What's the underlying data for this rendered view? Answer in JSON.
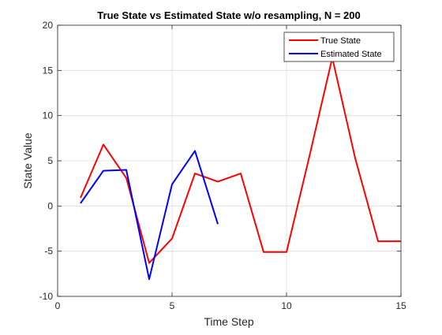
{
  "chart_data": {
    "type": "line",
    "title": "True State vs Estimated State w/o resampling, N = 200",
    "xlabel": "Time Step",
    "ylabel": "State Value",
    "xlim": [
      0,
      15
    ],
    "ylim": [
      -10,
      20
    ],
    "xticks": [
      0,
      5,
      10,
      15
    ],
    "yticks": [
      -10,
      -5,
      0,
      5,
      10,
      15,
      20
    ],
    "grid": true,
    "legend_position": "top-right",
    "series": [
      {
        "name": "True State",
        "color": "#ff0000",
        "x": [
          1,
          2,
          3,
          4,
          5,
          6,
          7,
          8,
          9,
          10,
          11,
          12,
          13,
          14,
          15
        ],
        "y": [
          0.9,
          6.8,
          3.1,
          -6.3,
          -3.6,
          3.6,
          2.7,
          3.6,
          -5.1,
          -5.1,
          5.5,
          16.4,
          5.3,
          -3.9,
          -3.9
        ]
      },
      {
        "name": "Estimated State",
        "color": "#0000ff",
        "x": [
          1,
          2,
          3,
          4,
          5,
          6,
          7
        ],
        "y": [
          0.3,
          3.9,
          4.0,
          -8.1,
          2.4,
          6.1,
          -2.0
        ]
      }
    ]
  }
}
